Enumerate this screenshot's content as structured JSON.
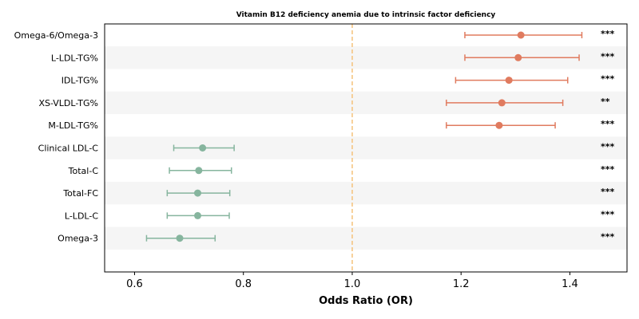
{
  "chart_data": {
    "type": "forest",
    "title": "Vitamin B12 deficiency anemia due to intrinsic factor deficiency",
    "xlabel": "Odds Ratio (OR)",
    "xlim": [
      0.545,
      1.505
    ],
    "xticks": [
      "0.6",
      "0.8",
      "1.0",
      "1.2",
      "1.4"
    ],
    "reference_line": 1.0,
    "colors": {
      "risk": "#e07b5f",
      "protective": "#86b59e",
      "reference": "#f5c27a",
      "band": "#f5f5f5"
    },
    "rows": [
      {
        "label": "Omega-6/Omega-3",
        "or": 1.31,
        "lower": 1.207,
        "upper": 1.422,
        "sig": "***"
      },
      {
        "label": "L-LDL-TG%",
        "or": 1.305,
        "lower": 1.207,
        "upper": 1.417,
        "sig": "***"
      },
      {
        "label": "IDL-TG%",
        "or": 1.288,
        "lower": 1.19,
        "upper": 1.396,
        "sig": "***"
      },
      {
        "label": "XS-VLDL-TG%",
        "or": 1.275,
        "lower": 1.173,
        "upper": 1.387,
        "sig": "**"
      },
      {
        "label": "M-LDL-TG%",
        "or": 1.27,
        "lower": 1.173,
        "upper": 1.373,
        "sig": "***"
      },
      {
        "label": "Clinical LDL-C",
        "or": 0.725,
        "lower": 0.672,
        "upper": 0.783,
        "sig": "***"
      },
      {
        "label": "Total-C",
        "or": 0.718,
        "lower": 0.664,
        "upper": 0.778,
        "sig": "***"
      },
      {
        "label": "Total-FC",
        "or": 0.716,
        "lower": 0.66,
        "upper": 0.775,
        "sig": "***"
      },
      {
        "label": "L-LDL-C",
        "or": 0.716,
        "lower": 0.66,
        "upper": 0.774,
        "sig": "***"
      },
      {
        "label": "Omega-3",
        "or": 0.683,
        "lower": 0.622,
        "upper": 0.748,
        "sig": "***"
      }
    ]
  }
}
